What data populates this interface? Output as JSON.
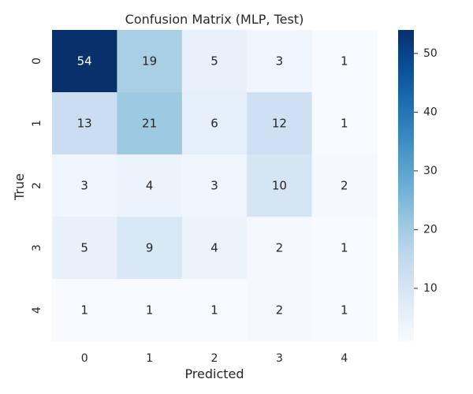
{
  "chart_data": {
    "type": "heatmap",
    "title": "Confusion Matrix (MLP, Test)",
    "xlabel": "Predicted",
    "ylabel": "True",
    "x_categories": [
      "0",
      "1",
      "2",
      "3",
      "4"
    ],
    "y_categories": [
      "0",
      "1",
      "2",
      "3",
      "4"
    ],
    "values": [
      [
        54,
        19,
        5,
        3,
        1
      ],
      [
        13,
        21,
        6,
        12,
        1
      ],
      [
        3,
        4,
        3,
        10,
        2
      ],
      [
        5,
        9,
        4,
        2,
        1
      ],
      [
        1,
        1,
        1,
        2,
        1
      ]
    ],
    "colormap": "Blues",
    "color_range": [
      1,
      54
    ],
    "colorbar_ticks": [
      10,
      20,
      30,
      40,
      50
    ],
    "colorbar_tick_labels": [
      "10",
      "20",
      "30",
      "40",
      "50"
    ],
    "colors": {
      "low": "#f7fbff",
      "high": "#08306b",
      "text_dark": "#262626",
      "text_light": "#ffffff"
    }
  }
}
